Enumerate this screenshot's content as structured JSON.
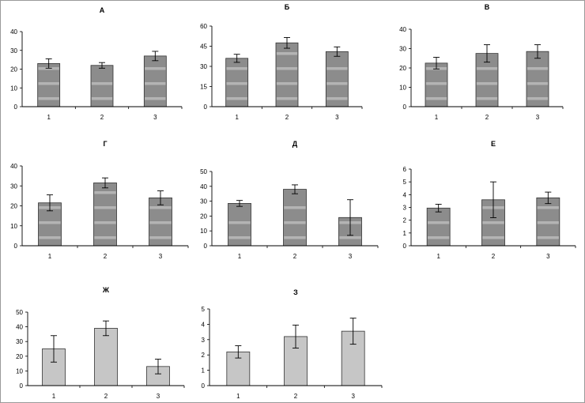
{
  "colors": {
    "bar_striped": "#8c8c8c",
    "stripe": "#b4b4b4",
    "bar_plain": "#c6c6c6",
    "axis": "#000000"
  },
  "chart_data": [
    {
      "type": "bar",
      "title": "А",
      "categories": [
        "1",
        "2",
        "3"
      ],
      "values": [
        23,
        22,
        27
      ],
      "errors": [
        2.5,
        1.5,
        2.5
      ],
      "ylim": [
        0,
        40
      ],
      "yticks": [
        "0",
        "10",
        "20",
        "30",
        "40"
      ],
      "style": "striped"
    },
    {
      "type": "bar",
      "title": "Б",
      "categories": [
        "1",
        "2",
        "3"
      ],
      "values": [
        36,
        47.5,
        41
      ],
      "errors": [
        3,
        4,
        3.5
      ],
      "ylim": [
        0,
        60
      ],
      "yticks": [
        "0",
        "15",
        "30",
        "45",
        "60"
      ],
      "style": "striped"
    },
    {
      "type": "bar",
      "title": "В",
      "categories": [
        "1",
        "2",
        "3"
      ],
      "values": [
        22.5,
        27.5,
        28.5
      ],
      "errors": [
        3,
        4.5,
        3.5
      ],
      "ylim": [
        0,
        40
      ],
      "yticks": [
        "0",
        "10",
        "20",
        "30",
        "40"
      ],
      "style": "striped"
    },
    {
      "type": "bar",
      "title": "Г",
      "categories": [
        "1",
        "2",
        "3"
      ],
      "values": [
        21.5,
        31.5,
        24
      ],
      "errors": [
        4,
        2.5,
        3.5
      ],
      "ylim": [
        0,
        40
      ],
      "yticks": [
        "0",
        "10",
        "20",
        "30",
        "40"
      ],
      "style": "striped"
    },
    {
      "type": "bar",
      "title": "Д",
      "categories": [
        "1",
        "2",
        "3"
      ],
      "values": [
        28.5,
        38,
        19
      ],
      "errors": [
        2,
        3,
        12
      ],
      "ylim": [
        0,
        50
      ],
      "yticks": [
        "0",
        "10",
        "20",
        "30",
        "40",
        "50"
      ],
      "style": "striped"
    },
    {
      "type": "bar",
      "title": "Е",
      "categories": [
        "1",
        "2",
        "3"
      ],
      "values": [
        2.95,
        3.6,
        3.75
      ],
      "errors": [
        0.3,
        1.4,
        0.45
      ],
      "ylim": [
        0,
        6
      ],
      "yticks": [
        "0",
        "1",
        "2",
        "3",
        "4",
        "5",
        "6"
      ],
      "style": "striped"
    },
    {
      "type": "bar",
      "title": "Ж",
      "categories": [
        "1",
        "2",
        "3"
      ],
      "values": [
        25,
        39,
        13
      ],
      "errors": [
        9,
        5,
        5
      ],
      "ylim": [
        0,
        50
      ],
      "yticks": [
        "0",
        "10",
        "20",
        "30",
        "40",
        "50"
      ],
      "style": "plain"
    },
    {
      "type": "bar",
      "title": "З",
      "categories": [
        "1",
        "2",
        "3"
      ],
      "values": [
        2.2,
        3.2,
        3.55
      ],
      "errors": [
        0.4,
        0.75,
        0.85
      ],
      "ylim": [
        0,
        5
      ],
      "yticks": [
        "0",
        "1",
        "2",
        "3",
        "4",
        "5"
      ],
      "style": "plain"
    }
  ]
}
